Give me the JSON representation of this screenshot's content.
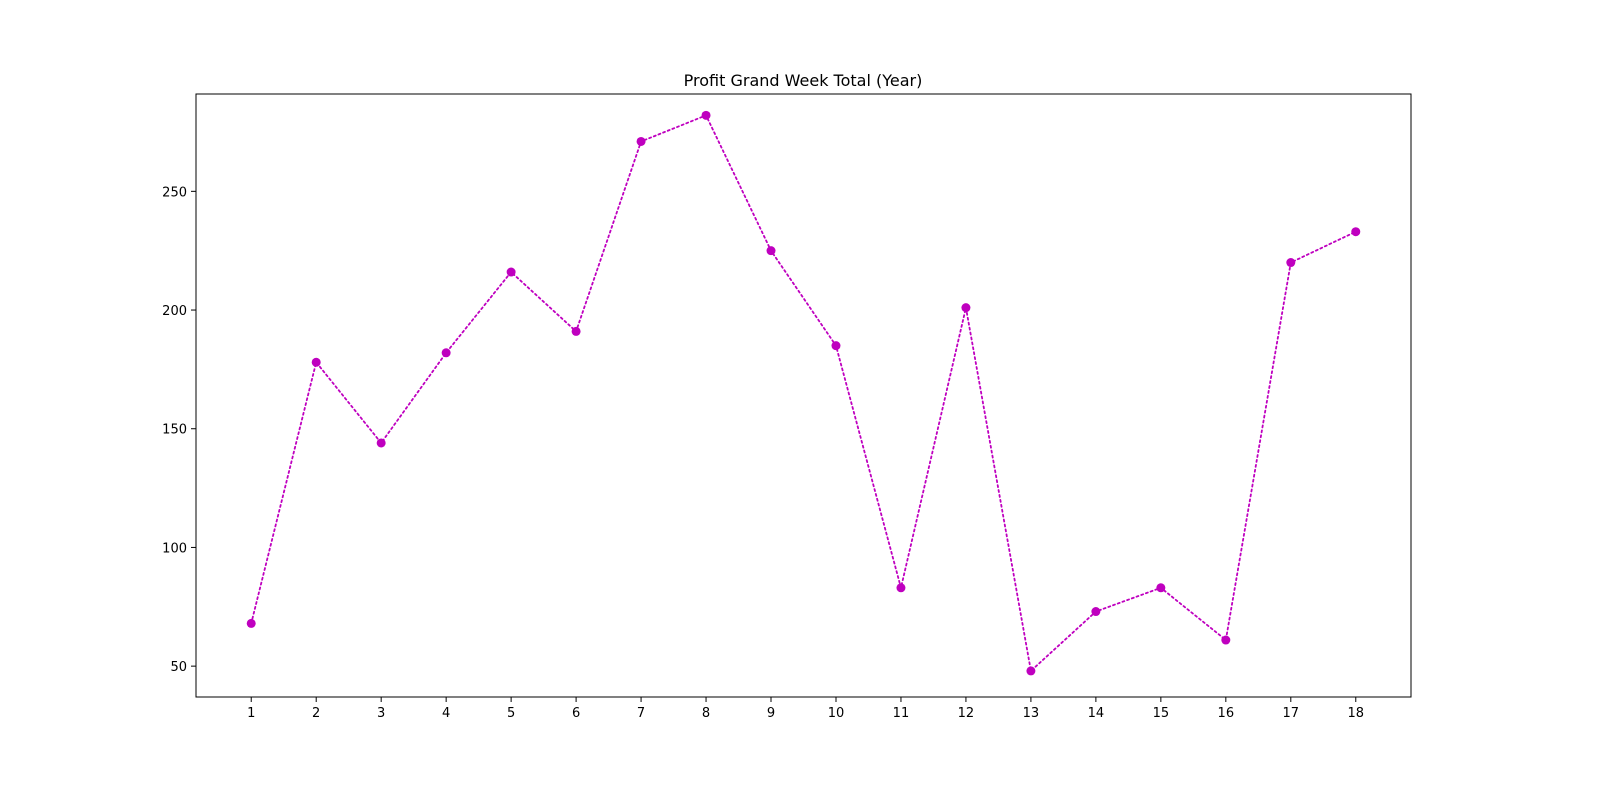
{
  "chart_data": {
    "type": "line",
    "title": "Profit Grand Week Total (Year)",
    "xlabel": "",
    "ylabel": "",
    "x": [
      1,
      2,
      3,
      4,
      5,
      6,
      7,
      8,
      9,
      10,
      11,
      12,
      13,
      14,
      15,
      16,
      17,
      18
    ],
    "x_tick_labels": [
      "1",
      "2",
      "3",
      "4",
      "5",
      "6",
      "7",
      "8",
      "9",
      "10",
      "11",
      "12",
      "13",
      "14",
      "15",
      "16",
      "17",
      "18"
    ],
    "y": [
      68,
      178,
      144,
      182,
      216,
      191,
      271,
      282,
      225,
      185,
      83,
      201,
      48,
      73,
      83,
      61,
      220,
      233
    ],
    "y_ticks": [
      50,
      100,
      150,
      200,
      250
    ],
    "y_tick_labels": [
      "50",
      "100",
      "150",
      "200",
      "250"
    ],
    "xlim": [
      0.15,
      18.85
    ],
    "ylim": [
      37,
      291
    ],
    "grid": false,
    "legend": "none",
    "line_style": "dotted",
    "marker": "circle",
    "series_color": "#bf00bf",
    "axis_color": "#000000",
    "background_color": "#ffffff"
  }
}
